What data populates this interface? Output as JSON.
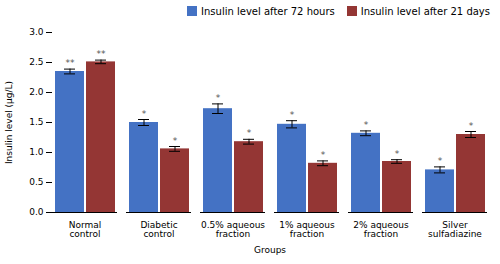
{
  "chart_data": {
    "type": "bar",
    "categories": [
      "Normal\ncontrol",
      "Diabetic\ncontrol",
      "0.5% aqueous\nfraction",
      "1% aqueous\nfraction",
      "2% aqueous\nfraction",
      "Silver\nsulfadiazine"
    ],
    "series": [
      {
        "name": "Insulin level after 72 hours",
        "color": "#4472C4",
        "values": [
          2.35,
          1.5,
          1.73,
          1.47,
          1.32,
          0.71
        ],
        "errors": [
          0.04,
          0.05,
          0.08,
          0.06,
          0.04,
          0.05
        ],
        "annotations": [
          "**",
          "*",
          "*",
          "*",
          "*",
          "*"
        ]
      },
      {
        "name": "Insulin level after 21 days",
        "color": "#943634",
        "values": [
          2.51,
          1.06,
          1.18,
          0.82,
          0.85,
          1.3
        ],
        "errors": [
          0.03,
          0.04,
          0.04,
          0.04,
          0.03,
          0.05
        ],
        "annotations": [
          "**",
          "*",
          "*",
          "*",
          "*",
          "*"
        ]
      }
    ],
    "xlabel": "Groups",
    "ylabel": "Insulin level (μg/L)",
    "ylim": [
      0,
      3.0
    ],
    "yticks": [
      {
        "value": 0,
        "label": "0.0"
      },
      0.5,
      {
        "value": 1.0,
        "label": "1.0"
      },
      1.5,
      {
        "value": 2.0,
        "label": "2.0"
      },
      2.5,
      {
        "value": 3.0,
        "label": "3.0"
      }
    ],
    "legend": "upper right",
    "grid": false
  }
}
